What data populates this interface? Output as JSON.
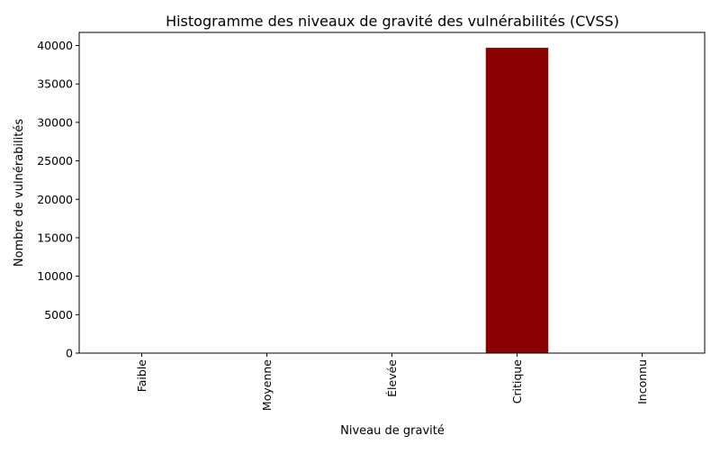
{
  "chart_data": {
    "type": "bar",
    "title": "Histogramme des niveaux de gravité des vulnérabilités (CVSS)",
    "xlabel": "Niveau de gravité",
    "ylabel": "Nombre de vulnérabilités",
    "categories": [
      "Faible",
      "Moyenne",
      "Élevée",
      "Critique",
      "Inconnu"
    ],
    "values": [
      0,
      0,
      0,
      39700,
      0
    ],
    "ylim": [
      0,
      41700
    ],
    "yticks": [
      0,
      5000,
      10000,
      15000,
      20000,
      25000,
      30000,
      35000,
      40000
    ],
    "ytick_labels": [
      "0",
      "5000",
      "10000",
      "15000",
      "20000",
      "25000",
      "30000",
      "35000",
      "40000"
    ],
    "bar_color": "#8b0000",
    "grid": false,
    "legend": "none"
  }
}
